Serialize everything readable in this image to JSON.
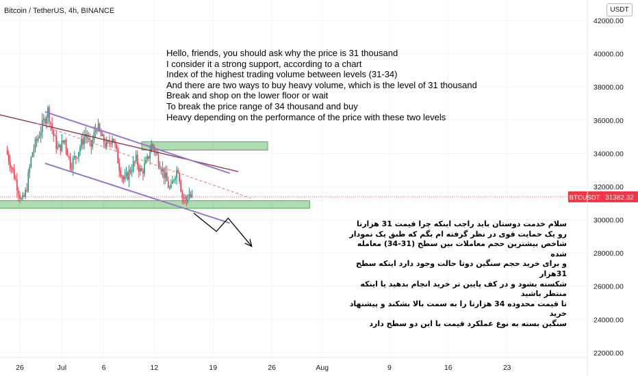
{
  "header": {
    "symbol_title": "Bitcoin / TetherUS, 4h, BINANCE",
    "currency_badge": "USDT"
  },
  "price_tag": {
    "symbol": "BTCUSDT",
    "value": "31382.32",
    "color": "#f23645"
  },
  "annotations": {
    "english_lines": [
      "Hello, friends, you should ask why the price is 31 thousand",
      "I consider it a strong support, according to a chart",
      "Index of the highest trading volume between levels (31-34)",
      "And there are two ways to buy heavy volume, which is the level of 31 thousand",
      "Break and shop on the lower floor or wait",
      "To break the price range of 34 thousand and buy",
      "Heavy depending on the performance of the price with these two levels"
    ],
    "persian_lines": [
      "سلام خدمت دوستان باید راجب اینکه چرا قیمت 31 هزارتا",
      "رو یک حمایت قوی در نظر گرفته ام بگم که طبق یک نمودار",
      "شاخص بیشترین حجم معاملات بین سطح (31-34) معامله شده",
      "و برای خرید حجم سنگین دوتا حالت وجود دارد اینکه سطح 31هزار",
      "شکسته بشود و در کف پایین تر خرید انجام بدهید یا اینکه منتظر باشید",
      "تا قیمت محدوده 34 هزارتا را به سمت بالا بشکند و پیشنهاد خرید",
      "سنگین بسته به نوع عملکرد قیمت با این دو سطح دارد"
    ]
  },
  "chart_data": {
    "type": "candlestick",
    "title": "Bitcoin / TetherUS, 4h, BINANCE",
    "ylim": [
      21500,
      43000
    ],
    "xlim_days": [
      24.5,
      56.5
    ],
    "y_ticks": [
      "22000.00",
      "24000.00",
      "26000.00",
      "28000.00",
      "30000.00",
      "32000.00",
      "34000.00",
      "36000.00",
      "38000.00",
      "40000.00",
      "42000.00"
    ],
    "x_ticks": [
      {
        "label": "26",
        "day": 26
      },
      {
        "label": "Jul",
        "day": 31
      },
      {
        "label": "6",
        "day": 36
      },
      {
        "label": "12",
        "day": 42
      },
      {
        "label": "19",
        "day": 49
      },
      {
        "label": "26",
        "day": 56
      },
      {
        "label": "Aug",
        "day": 62
      },
      {
        "label": "9",
        "day": 70
      },
      {
        "label": "16",
        "day": 77
      },
      {
        "label": "23",
        "day": 84
      }
    ],
    "last_price": 31382.32,
    "up_color": "#089981",
    "down_color": "#f23645",
    "candle_anchors": [
      [
        24.5,
        34200
      ],
      [
        25.3,
        33000
      ],
      [
        26.0,
        31800
      ],
      [
        26.4,
        31000
      ],
      [
        26.9,
        31700
      ],
      [
        27.6,
        34000
      ],
      [
        28.5,
        35200
      ],
      [
        29.5,
        36600
      ],
      [
        30.2,
        35000
      ],
      [
        30.7,
        34200
      ],
      [
        31.5,
        34800
      ],
      [
        32.2,
        33300
      ],
      [
        32.8,
        33800
      ],
      [
        33.5,
        34600
      ],
      [
        34.0,
        35200
      ],
      [
        34.6,
        34300
      ],
      [
        35.3,
        35700
      ],
      [
        36.0,
        34800
      ],
      [
        36.6,
        34400
      ],
      [
        37.2,
        35100
      ],
      [
        38.0,
        33200
      ],
      [
        38.6,
        32300
      ],
      [
        39.3,
        33000
      ],
      [
        40.0,
        33600
      ],
      [
        40.6,
        32800
      ],
      [
        41.3,
        33500
      ],
      [
        41.9,
        34600
      ],
      [
        42.5,
        33800
      ],
      [
        43.0,
        33200
      ],
      [
        43.5,
        32500
      ],
      [
        44.1,
        31700
      ],
      [
        44.6,
        32800
      ],
      [
        45.0,
        33100
      ],
      [
        45.5,
        31400
      ],
      [
        46.0,
        31200
      ],
      [
        46.3,
        31600
      ],
      [
        46.6,
        31300
      ]
    ],
    "overlays": {
      "resistance_line": {
        "color": "#8e2b45",
        "from": [
          18.0,
          37000
        ],
        "to": [
          52.0,
          32900
        ]
      },
      "channel_upper": {
        "color": "#9575cd",
        "from": [
          29.0,
          36500
        ],
        "to": [
          51.0,
          32800
        ]
      },
      "channel_lower": {
        "color": "#9575cd",
        "from": [
          29.0,
          33400
        ],
        "to": [
          51.0,
          29800
        ]
      },
      "dashed_trend": {
        "color": "#e57373",
        "from": [
          28.0,
          35800
        ],
        "to": [
          53.5,
          31300
        ]
      },
      "zone_34k": {
        "color": "#4caf50",
        "from_day": 40.5,
        "to_day": 55.5,
        "low": 34200,
        "high": 34700
      },
      "zone_31k": {
        "color": "#4caf50",
        "from_day": 18.0,
        "to_day": 60.5,
        "low": 30700,
        "high": 31150
      },
      "projection_path": {
        "color": "#000000",
        "points": [
          [
            46.7,
            30400
          ],
          [
            49.4,
            29300
          ],
          [
            50.8,
            30100
          ],
          [
            53.6,
            28400
          ]
        ]
      }
    }
  }
}
